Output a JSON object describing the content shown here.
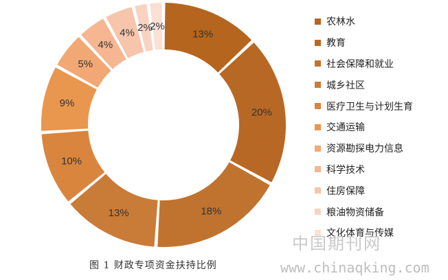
{
  "chart_data": {
    "type": "pie",
    "donut": true,
    "title": "",
    "legend_position": "right",
    "categories": [
      "农林水",
      "教育",
      "社会保障和就业",
      "城乡社区",
      "医疗卫生与计划生育",
      "交通运输",
      "资源勘探电力信息",
      "科学技术",
      "住房保障",
      "粮油物资储备",
      "文化体育与传媒"
    ],
    "values": [
      13,
      20,
      18,
      13,
      10,
      9,
      5,
      4,
      4,
      2,
      2
    ],
    "labels": [
      "13%",
      "20%",
      "18%",
      "13%",
      "10%",
      "9%",
      "5%",
      "4%",
      "4%",
      "2%",
      "2%"
    ],
    "colors": [
      "#b5651d",
      "#b86825",
      "#c0732f",
      "#c97b38",
      "#d9853e",
      "#e9964f",
      "#f2a874",
      "#f5b691",
      "#f7c5ab",
      "#f9d3c2",
      "#fbe0d6"
    ]
  },
  "caption": "图 1   财政专项资金扶持比例",
  "watermark": {
    "site_cn": "中国期刊网",
    "url": "www.chinaqking.com"
  }
}
